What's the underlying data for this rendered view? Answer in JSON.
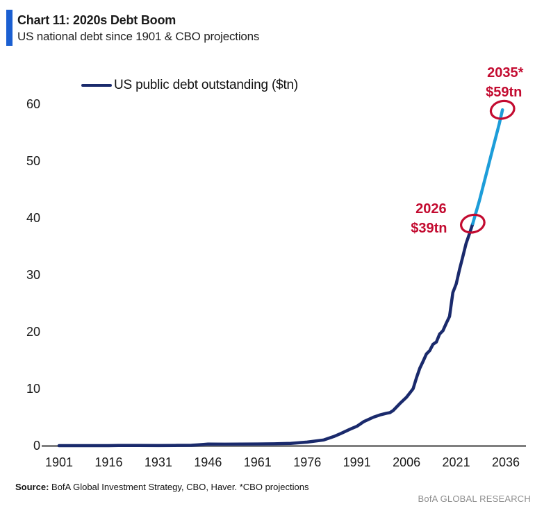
{
  "header": {
    "title": "Chart 11: 2020s Debt Boom",
    "subtitle": "US national debt since 1901 & CBO projections",
    "accent_color": "#1b5fd1"
  },
  "chart_data": {
    "type": "line",
    "title": "Chart 11: 2020s Debt Boom",
    "subtitle": "US national debt since 1901 & CBO projections",
    "xlabel": "",
    "ylabel": "US public debt outstanding ($tn)",
    "grid": false,
    "legend_position": "top-left",
    "legend": [
      {
        "label": "US public debt outstanding ($tn)",
        "color": "#1a2a6c"
      }
    ],
    "xlim": [
      1901,
      2036
    ],
    "ylim": [
      0,
      60
    ],
    "x_ticks": [
      "1901",
      "1916",
      "1931",
      "1946",
      "1961",
      "1976",
      "1991",
      "2006",
      "2021",
      "2036"
    ],
    "y_ticks": [
      "0",
      "10",
      "20",
      "30",
      "40",
      "50",
      "60"
    ],
    "axis_color": "#7f7f7f",
    "series": [
      {
        "name": "US public debt outstanding ($tn)",
        "color": "#1a2a6c",
        "style": "historical",
        "x": [
          1901,
          1905,
          1910,
          1916,
          1919,
          1925,
          1931,
          1936,
          1941,
          1943,
          1946,
          1951,
          1956,
          1961,
          1966,
          1971,
          1976,
          1981,
          1984,
          1986,
          1989,
          1991,
          1993,
          1996,
          1998,
          2000,
          2001,
          2002,
          2004,
          2006,
          2008,
          2009,
          2010,
          2011,
          2012,
          2013,
          2014,
          2015,
          2016,
          2017,
          2018,
          2019,
          2020,
          2021,
          2022,
          2023,
          2024,
          2025,
          2026
        ],
        "values": [
          0.001,
          0.001,
          0.001,
          0.004,
          0.027,
          0.02,
          0.017,
          0.034,
          0.058,
          0.14,
          0.27,
          0.26,
          0.27,
          0.29,
          0.32,
          0.4,
          0.62,
          1.0,
          1.6,
          2.1,
          2.9,
          3.4,
          4.2,
          5.0,
          5.4,
          5.7,
          5.8,
          6.2,
          7.4,
          8.5,
          10.0,
          11.9,
          13.6,
          14.8,
          16.1,
          16.7,
          17.8,
          18.2,
          19.6,
          20.2,
          21.5,
          22.7,
          26.9,
          28.4,
          30.9,
          33.2,
          35.5,
          37.2,
          39.0
        ]
      },
      {
        "name": "CBO projection",
        "color": "#1d9dd9",
        "style": "projection",
        "x": [
          2026,
          2028,
          2030,
          2032,
          2034,
          2035
        ],
        "values": [
          39.0,
          43.0,
          47.5,
          52.0,
          56.5,
          59.0
        ]
      }
    ],
    "annotation_color": "#c30b30",
    "annotations": [
      {
        "line1": "2026",
        "line2": "$39tn",
        "x": 2026,
        "y": 39,
        "placement": "left"
      },
      {
        "line1": "2035*",
        "line2": "$59tn",
        "x": 2035,
        "y": 59,
        "placement": "above"
      }
    ]
  },
  "footer": {
    "source_label": "Source:",
    "source_text": " BofA Global Investment Strategy, CBO, Haver. *CBO projections",
    "brand": "BofA GLOBAL RESEARCH"
  }
}
